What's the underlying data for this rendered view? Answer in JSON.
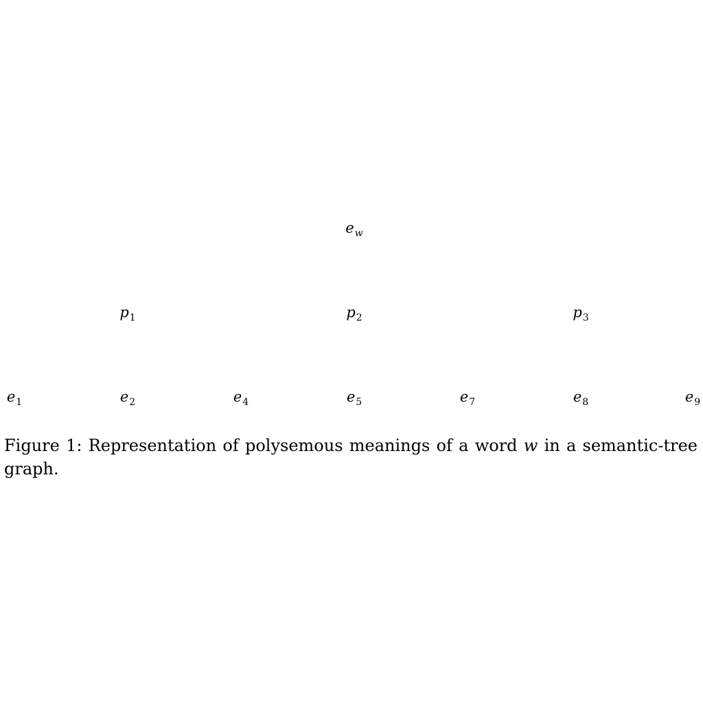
{
  "diagram": {
    "root": {
      "base": "e",
      "sub": "w"
    },
    "middle": [
      {
        "base": "p",
        "sub": "1"
      },
      {
        "base": "p",
        "sub": "2"
      },
      {
        "base": "p",
        "sub": "3"
      }
    ],
    "leaves": [
      {
        "base": "e",
        "sub": "1"
      },
      {
        "base": "e",
        "sub": "2"
      },
      {
        "base": "e",
        "sub": "4"
      },
      {
        "base": "e",
        "sub": "5"
      },
      {
        "base": "e",
        "sub": "7"
      },
      {
        "base": "e",
        "sub": "8"
      },
      {
        "base": "e",
        "sub": "9"
      }
    ]
  },
  "caption": {
    "label": "Figure 1:",
    "text_before": "Representation of polysemous meanings of a word",
    "math_var": "w",
    "text_after": "in a semantic-tree graph."
  }
}
